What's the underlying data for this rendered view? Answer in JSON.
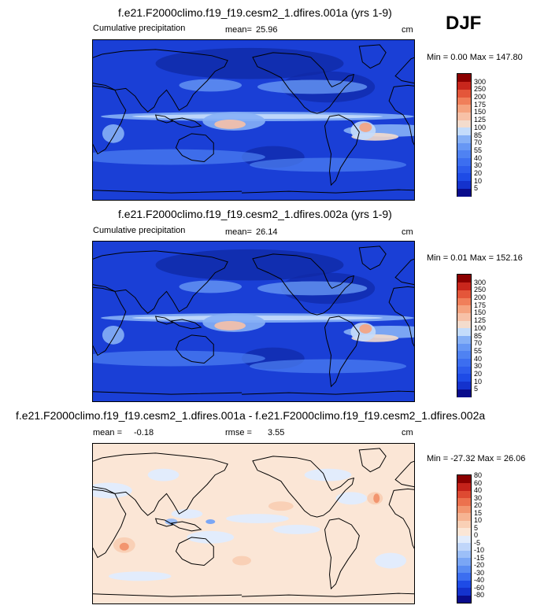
{
  "season": "DJF",
  "panels": [
    {
      "title": "f.e21.F2000climo.f19_f19.cesm2_1.dfires.001a (yrs 1-9)",
      "field": "Cumulative precipitation",
      "stat_label": "mean=",
      "stat_value": "25.96",
      "units": "cm",
      "minmax": "Min =   0.00 Max = 147.80",
      "kind": "abs"
    },
    {
      "title": "f.e21.F2000climo.f19_f19.cesm2_1.dfires.002a (yrs 1-9)",
      "field": "Cumulative precipitation",
      "stat_label": "mean=",
      "stat_value": "26.14",
      "units": "cm",
      "minmax": "Min =  0.01 Max = 152.16",
      "kind": "abs"
    },
    {
      "title": "f.e21.F2000climo.f19_f19.cesm2_1.dfires.001a - f.e21.F2000climo.f19_f19.cesm2_1.dfires.002a",
      "mean_label": "mean =",
      "mean_value": "-0.18",
      "rmse_label": "rmse =",
      "rmse_value": "3.55",
      "units": "cm",
      "minmax": "Min = -27.32 Max =  26.06",
      "kind": "diff"
    }
  ],
  "chart_data": [
    {
      "type": "heatmap",
      "title": "f.e21.F2000climo.f19_f19.cesm2_1.dfires.001a (yrs 1-9)",
      "variable": "Cumulative precipitation",
      "units": "cm",
      "mean": 25.96,
      "min": 0.0,
      "max": 147.8,
      "colorbar_levels": [
        5,
        10,
        20,
        30,
        40,
        55,
        70,
        85,
        100,
        125,
        150,
        175,
        200,
        250,
        300
      ],
      "colorbar_colors": [
        "#0a0c8c",
        "#1432cd",
        "#1e4be6",
        "#2d5cec",
        "#3c6ef0",
        "#4f82f2",
        "#6797f4",
        "#86b0f6",
        "#c4dcfb",
        "#f3dccd",
        "#f7c1a7",
        "#f5a37f",
        "#f07f5a",
        "#e4563a",
        "#c8261c",
        "#8b0000"
      ]
    },
    {
      "type": "heatmap",
      "title": "f.e21.F2000climo.f19_f19.cesm2_1.dfires.002a (yrs 1-9)",
      "variable": "Cumulative precipitation",
      "units": "cm",
      "mean": 26.14,
      "min": 0.01,
      "max": 152.16,
      "colorbar_levels": [
        5,
        10,
        20,
        30,
        40,
        55,
        70,
        85,
        100,
        125,
        150,
        175,
        200,
        250,
        300
      ],
      "colorbar_colors": [
        "#0a0c8c",
        "#1432cd",
        "#1e4be6",
        "#2d5cec",
        "#3c6ef0",
        "#4f82f2",
        "#6797f4",
        "#86b0f6",
        "#c4dcfb",
        "#f3dccd",
        "#f7c1a7",
        "#f5a37f",
        "#f07f5a",
        "#e4563a",
        "#c8261c",
        "#8b0000"
      ]
    },
    {
      "type": "heatmap",
      "title": "f.e21.F2000climo.f19_f19.cesm2_1.dfires.001a - f.e21.F2000climo.f19_f19.cesm2_1.dfires.002a",
      "units": "cm",
      "mean": -0.18,
      "rmse": 3.55,
      "min": -27.32,
      "max": 26.06,
      "colorbar_levels": [
        -80,
        -60,
        -40,
        -30,
        -20,
        -15,
        -10,
        -5,
        0,
        5,
        10,
        15,
        20,
        30,
        40,
        60,
        80
      ],
      "colorbar_colors": [
        "#0a0c8c",
        "#1432cd",
        "#1e4be6",
        "#3c6ef0",
        "#5a8cf2",
        "#7aa6f5",
        "#9cbff8",
        "#c0d6fa",
        "#e2ecfc",
        "#fbe6d6",
        "#f9d0b6",
        "#f6b493",
        "#f2956f",
        "#ec714e",
        "#de4a32",
        "#c4221a",
        "#8b0000"
      ]
    }
  ]
}
